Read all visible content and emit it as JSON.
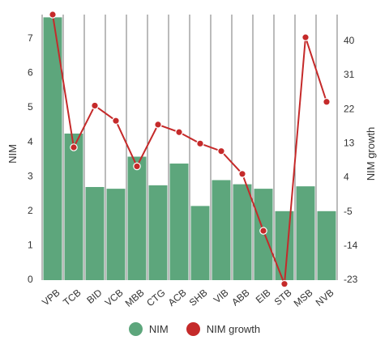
{
  "chart_data": {
    "type": "bar",
    "categories": [
      "VPB",
      "TCB",
      "BID",
      "VCB",
      "MBB",
      "CTG",
      "ACB",
      "SHB",
      "VIB",
      "ABB",
      "EIB",
      "STB",
      "MSB",
      "NVB"
    ],
    "series": [
      {
        "name": "NIM",
        "type": "bar",
        "axis": "left",
        "color": "#5da67c",
        "values": [
          7.62,
          4.25,
          2.7,
          2.65,
          3.58,
          2.75,
          3.38,
          2.15,
          2.9,
          2.78,
          2.65,
          2.0,
          2.72,
          2.0
        ]
      },
      {
        "name": "NIM growth",
        "type": "line",
        "axis": "right",
        "color": "#c52a2a",
        "values": [
          47,
          12,
          23,
          19,
          7,
          18,
          16,
          13,
          11,
          5,
          -10,
          -24,
          41,
          24
        ]
      }
    ],
    "xlabel": "",
    "ylabel": "NIM",
    "y2label": "NIM growth",
    "ylim": [
      0,
      7.7
    ],
    "y2lim": [
      -23,
      47
    ],
    "yticks": [
      0,
      1,
      2,
      3,
      4,
      5,
      6,
      7
    ],
    "y2ticks": [
      -23,
      -14,
      -5,
      4,
      13,
      22,
      31,
      40
    ],
    "grid": "vertical",
    "legend": "bottom-center"
  }
}
